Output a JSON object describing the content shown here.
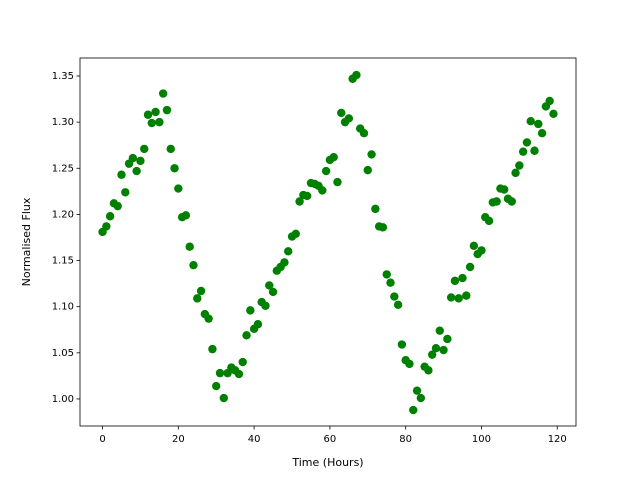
{
  "chart_data": {
    "type": "scatter",
    "xlabel": "Time (Hours)",
    "ylabel": "Normalised Flux",
    "color": "#008000",
    "x": [
      0,
      1,
      2,
      3,
      4,
      5,
      6,
      7,
      8,
      9,
      10,
      11,
      12,
      13,
      14,
      15,
      16,
      17,
      18,
      19,
      20,
      21,
      22,
      23,
      24,
      25,
      26,
      27,
      28,
      29,
      30,
      31,
      32,
      33,
      34,
      35,
      36,
      37,
      38,
      39,
      40,
      41,
      42,
      43,
      44,
      45,
      46,
      47,
      48,
      49,
      50,
      51,
      52,
      53,
      54,
      55,
      56,
      57,
      58,
      59,
      60,
      61,
      62,
      63,
      64,
      65,
      66,
      67,
      68,
      69,
      70,
      71,
      72,
      73,
      74,
      75,
      76,
      77,
      78,
      79,
      80,
      81,
      82,
      83,
      84,
      85,
      86,
      87,
      88,
      89,
      90,
      91,
      92,
      93,
      94,
      95,
      96,
      97,
      98,
      99,
      100,
      101,
      102,
      103,
      104,
      105,
      106,
      107,
      108,
      109,
      110,
      111,
      112,
      113,
      114,
      115,
      116,
      117,
      118,
      119
    ],
    "values": [
      1.181,
      1.187,
      1.198,
      1.212,
      1.209,
      1.243,
      1.224,
      1.255,
      1.261,
      1.247,
      1.258,
      1.271,
      1.308,
      1.299,
      1.311,
      1.3,
      1.331,
      1.313,
      1.271,
      1.25,
      1.228,
      1.197,
      1.199,
      1.165,
      1.145,
      1.109,
      1.117,
      1.092,
      1.087,
      1.054,
      1.014,
      1.028,
      1.001,
      1.028,
      1.034,
      1.031,
      1.027,
      1.04,
      1.069,
      1.096,
      1.076,
      1.081,
      1.105,
      1.101,
      1.123,
      1.116,
      1.139,
      1.143,
      1.148,
      1.16,
      1.176,
      1.179,
      1.214,
      1.221,
      1.22,
      1.234,
      1.233,
      1.231,
      1.226,
      1.247,
      1.259,
      1.262,
      1.235,
      1.31,
      1.3,
      1.304,
      1.347,
      1.351,
      1.293,
      1.288,
      1.248,
      1.265,
      1.206,
      1.187,
      1.186,
      1.135,
      1.126,
      1.111,
      1.102,
      1.059,
      1.042,
      1.038,
      0.988,
      1.009,
      1.001,
      1.035,
      1.031,
      1.048,
      1.055,
      1.074,
      1.053,
      1.065,
      1.11,
      1.128,
      1.109,
      1.131,
      1.112,
      1.143,
      1.166,
      1.157,
      1.161,
      1.197,
      1.193,
      1.213,
      1.214,
      1.228,
      1.227,
      1.217,
      1.214,
      1.245,
      1.253,
      1.268,
      1.278,
      1.301,
      1.269,
      1.298,
      1.288,
      1.317,
      1.323,
      1.309
    ],
    "xlim": [
      -5.95,
      124.95
    ],
    "ylim": [
      0.9707,
      1.3695
    ],
    "xticks": [
      0,
      20,
      40,
      60,
      80,
      100,
      120
    ],
    "yticks": [
      {
        "value": 1.0,
        "label": "1.00"
      },
      1.05,
      {
        "value": 1.1,
        "label": "1.10"
      },
      1.15,
      {
        "value": 1.2,
        "label": "1.20"
      },
      1.25,
      {
        "value": 1.3,
        "label": "1.30"
      },
      1.35
    ]
  }
}
